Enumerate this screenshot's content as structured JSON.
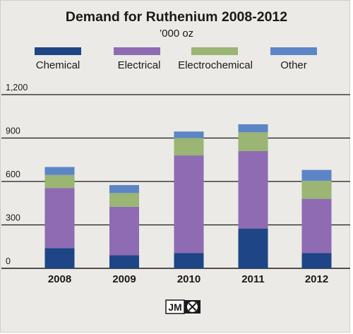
{
  "chart_data": {
    "type": "bar",
    "stacked": true,
    "title": "Demand for Ruthenium 2008-2012",
    "subtitle": "’000 oz",
    "categories": [
      "2008",
      "2009",
      "2010",
      "2011",
      "2012"
    ],
    "series": [
      {
        "name": "Chemical",
        "color": "#1e4585",
        "values": [
          140,
          90,
          105,
          275,
          105
        ]
      },
      {
        "name": "Electrical",
        "color": "#8e6bb2",
        "values": [
          415,
          335,
          675,
          535,
          375
        ]
      },
      {
        "name": "Electrochemical",
        "color": "#9ab574",
        "values": [
          90,
          95,
          120,
          130,
          125
        ]
      },
      {
        "name": "Other",
        "color": "#5b85c6",
        "values": [
          55,
          55,
          45,
          55,
          75
        ]
      }
    ],
    "yticks": [
      "0",
      "300",
      "600",
      "900",
      "1,200"
    ],
    "ylim": [
      0,
      1200
    ],
    "grid": true,
    "legend_position": "top"
  },
  "logo": {
    "text": "JM"
  }
}
